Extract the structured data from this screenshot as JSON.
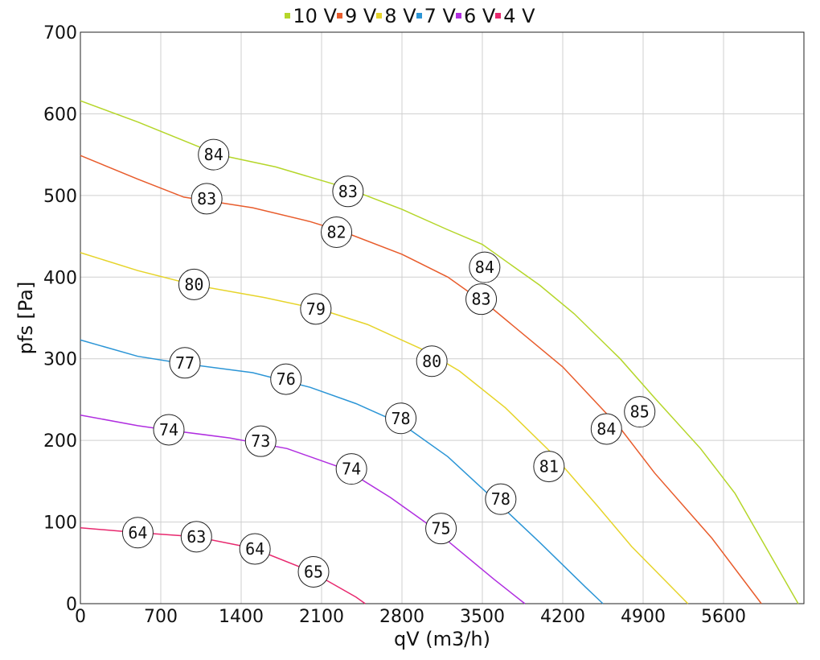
{
  "chart_data": {
    "type": "line",
    "xlabel": "qV (m3/h)",
    "ylabel": "pfs [Pa]",
    "xlim": [
      0,
      6300
    ],
    "ylim": [
      0,
      700
    ],
    "xticks": [
      0,
      700,
      1400,
      2100,
      2800,
      3500,
      4200,
      4900,
      5600
    ],
    "yticks": [
      0,
      100,
      200,
      300,
      400,
      500,
      600,
      700
    ],
    "grid": true,
    "legend_position": "top",
    "series": [
      {
        "name": "10 V",
        "color": "#b5d62a",
        "points": [
          [
            0,
            616
          ],
          [
            500,
            590
          ],
          [
            1200,
            550
          ],
          [
            1700,
            535
          ],
          [
            2300,
            510
          ],
          [
            2800,
            483
          ],
          [
            3200,
            458
          ],
          [
            3500,
            440
          ],
          [
            4000,
            390
          ],
          [
            4300,
            355
          ],
          [
            4700,
            300
          ],
          [
            5000,
            252
          ],
          [
            5400,
            190
          ],
          [
            5700,
            135
          ],
          [
            6250,
            0
          ]
        ],
        "labels": [
          {
            "x": 1160,
            "y": 550,
            "text": "84"
          },
          {
            "x": 2330,
            "y": 505,
            "text": "83"
          },
          {
            "x": 3520,
            "y": 412,
            "text": "84"
          },
          {
            "x": 4870,
            "y": 235,
            "text": "85"
          }
        ]
      },
      {
        "name": "9 V",
        "color": "#e85c2c",
        "points": [
          [
            0,
            549
          ],
          [
            500,
            520
          ],
          [
            900,
            498
          ],
          [
            1500,
            485
          ],
          [
            2000,
            468
          ],
          [
            2300,
            455
          ],
          [
            2800,
            428
          ],
          [
            3200,
            400
          ],
          [
            3600,
            360
          ],
          [
            4200,
            290
          ],
          [
            4700,
            215
          ],
          [
            5000,
            160
          ],
          [
            5500,
            80
          ],
          [
            5930,
            0
          ]
        ],
        "labels": [
          {
            "x": 1100,
            "y": 496,
            "text": "83"
          },
          {
            "x": 2230,
            "y": 455,
            "text": "82"
          },
          {
            "x": 3490,
            "y": 373,
            "text": "83"
          },
          {
            "x": 4580,
            "y": 214,
            "text": "84"
          }
        ]
      },
      {
        "name": "8 V",
        "color": "#e6d42a",
        "points": [
          [
            0,
            430
          ],
          [
            500,
            408
          ],
          [
            1000,
            390
          ],
          [
            1600,
            375
          ],
          [
            2100,
            360
          ],
          [
            2500,
            342
          ],
          [
            3000,
            310
          ],
          [
            3300,
            285
          ],
          [
            3700,
            240
          ],
          [
            4100,
            185
          ],
          [
            4500,
            120
          ],
          [
            4800,
            70
          ],
          [
            5290,
            0
          ]
        ],
        "labels": [
          {
            "x": 990,
            "y": 391,
            "text": "80"
          },
          {
            "x": 2050,
            "y": 361,
            "text": "79"
          },
          {
            "x": 3060,
            "y": 297,
            "text": "80"
          },
          {
            "x": 4080,
            "y": 168,
            "text": "81"
          }
        ]
      },
      {
        "name": "7 V",
        "color": "#2b95d6",
        "points": [
          [
            0,
            323
          ],
          [
            500,
            303
          ],
          [
            900,
            294
          ],
          [
            1500,
            283
          ],
          [
            2000,
            265
          ],
          [
            2400,
            245
          ],
          [
            2800,
            220
          ],
          [
            3200,
            180
          ],
          [
            3600,
            128
          ],
          [
            4000,
            75
          ],
          [
            4400,
            20
          ],
          [
            4550,
            0
          ]
        ],
        "labels": [
          {
            "x": 910,
            "y": 295,
            "text": "77"
          },
          {
            "x": 1790,
            "y": 275,
            "text": "76"
          },
          {
            "x": 2790,
            "y": 227,
            "text": "78"
          },
          {
            "x": 3660,
            "y": 128,
            "text": "78"
          }
        ]
      },
      {
        "name": "6 V",
        "color": "#b02ee0",
        "points": [
          [
            0,
            231
          ],
          [
            500,
            218
          ],
          [
            800,
            212
          ],
          [
            1300,
            203
          ],
          [
            1800,
            190
          ],
          [
            2300,
            165
          ],
          [
            2700,
            130
          ],
          [
            3000,
            100
          ],
          [
            3300,
            65
          ],
          [
            3600,
            30
          ],
          [
            3870,
            0
          ]
        ],
        "labels": [
          {
            "x": 770,
            "y": 213,
            "text": "74"
          },
          {
            "x": 1570,
            "y": 199,
            "text": "73"
          },
          {
            "x": 2360,
            "y": 165,
            "text": "74"
          },
          {
            "x": 3140,
            "y": 92,
            "text": "75"
          }
        ]
      },
      {
        "name": "4 V",
        "color": "#e8286e",
        "points": [
          [
            0,
            93
          ],
          [
            500,
            87
          ],
          [
            1000,
            82
          ],
          [
            1500,
            68
          ],
          [
            2000,
            40
          ],
          [
            2400,
            8
          ],
          [
            2480,
            0
          ]
        ],
        "labels": [
          {
            "x": 500,
            "y": 87,
            "text": "64"
          },
          {
            "x": 1010,
            "y": 82,
            "text": "63"
          },
          {
            "x": 1520,
            "y": 67,
            "text": "64"
          },
          {
            "x": 2030,
            "y": 39,
            "text": "65"
          }
        ]
      }
    ]
  }
}
